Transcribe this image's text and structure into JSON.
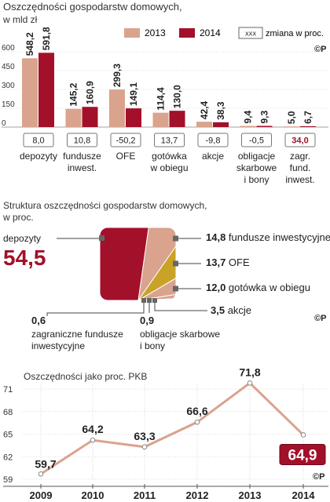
{
  "colors": {
    "c2013": "#d9a38e",
    "c2014": "#a3102a",
    "gold": "#c9a227",
    "line": "#d9a38e",
    "grid": "#bbbbbb",
    "text": "#222222",
    "accent_red": "#a3102a"
  },
  "copyright_mark": "©P",
  "chart_data": [
    {
      "type": "bar",
      "title": "Oszczędności gospodarstw domowych,",
      "subtitle": "w mld zł",
      "legend": {
        "placement": "top-right",
        "change_label": "zmiana w proc.",
        "change_box": "XXX"
      },
      "ylim": [
        0,
        650
      ],
      "yticks": [
        0,
        150,
        300,
        450,
        600
      ],
      "yticks_label": [
        "0",
        "150",
        "300",
        "450",
        "600"
      ],
      "categories": [
        "depozyty",
        "fundusze inwest.",
        "OFE",
        "gotówka w obiegu",
        "akcje",
        "obligacje skarbowe i bony",
        "zagr. fund. inwest."
      ],
      "series": [
        {
          "name": "2013",
          "values": [
            548.2,
            145.2,
            299.3,
            114.4,
            42.4,
            9.4,
            5.0
          ],
          "labels": [
            "548,2",
            "145,2",
            "299,3",
            "114,4",
            "42,4",
            "9,4",
            "5,0"
          ]
        },
        {
          "name": "2014",
          "values": [
            591.8,
            160.9,
            149.1,
            130.0,
            38.3,
            9.3,
            6.7
          ],
          "labels": [
            "591,8",
            "160,9",
            "149,1",
            "130,0",
            "38,3",
            "9,3",
            "6,7"
          ]
        }
      ],
      "change_pct": [
        "8,0",
        "10,8",
        "-50,2",
        "13,7",
        "-9,8",
        "-0,5",
        "34,0"
      ],
      "category_lines": [
        [
          "depozyty"
        ],
        [
          "fundusze",
          "inwest."
        ],
        [
          "OFE"
        ],
        [
          "gotówka",
          "w obiegu"
        ],
        [
          "akcje"
        ],
        [
          "obligacje",
          "skarbowe",
          "i bony"
        ],
        [
          "zagr.",
          "fund.",
          "inwest."
        ]
      ]
    },
    {
      "type": "pie",
      "title": "Struktura oszczędności gospodarstw domowych,",
      "subtitle": "w proc.",
      "slices": [
        {
          "name": "depozyty",
          "value": 54.5,
          "label": "54,5"
        },
        {
          "name": "fundusze inwestycyjne",
          "value": 14.8,
          "label": "14,8"
        },
        {
          "name": "OFE",
          "value": 13.7,
          "label": "13,7"
        },
        {
          "name": "gotówka w obiegu",
          "value": 12.0,
          "label": "12,0"
        },
        {
          "name": "akcje",
          "value": 3.5,
          "label": "3,5"
        },
        {
          "name": "obligacje skarbowe i bony",
          "value": 0.9,
          "label": "0,9"
        },
        {
          "name": "zagraniczne fundusze inwestycyjne",
          "value": 0.6,
          "label": "0,6"
        }
      ]
    },
    {
      "type": "line",
      "title": "Oszczędności jako proc. PKB",
      "x": [
        "2009",
        "2010",
        "2011",
        "2012",
        "2013",
        "2014"
      ],
      "series": [
        {
          "values": [
            59.7,
            64.2,
            63.3,
            66.6,
            71.8,
            64.9
          ],
          "labels": [
            "59,7",
            "64,2",
            "63,3",
            "66,6",
            "71,8",
            "64,9"
          ]
        }
      ],
      "ylim": [
        59,
        71
      ],
      "yticks": [
        59,
        62,
        65,
        68,
        71
      ],
      "grid": true
    }
  ]
}
